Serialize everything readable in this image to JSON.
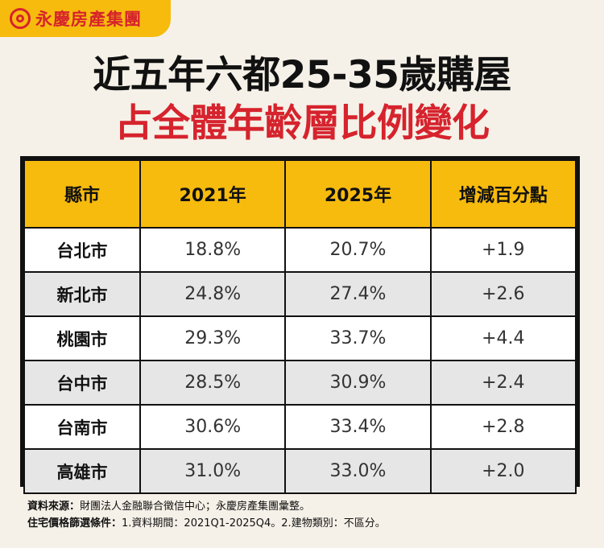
{
  "brand": {
    "name": "永慶房產集團",
    "logo_icon": "circle-logo-icon",
    "accent": "#f7bb0e",
    "brand_color": "#d6232d"
  },
  "title": {
    "line1": "近五年六都25-35歲購屋",
    "line2": "占全體年齡層比例變化"
  },
  "chart_data": {
    "type": "table",
    "columns": [
      "縣市",
      "2021年",
      "2025年",
      "增減百分點"
    ],
    "rows": [
      {
        "city": "台北市",
        "y2021": "18.8%",
        "y2025": "20.7%",
        "change": "+1.9"
      },
      {
        "city": "新北市",
        "y2021": "24.8%",
        "y2025": "27.4%",
        "change": "+2.6"
      },
      {
        "city": "桃園市",
        "y2021": "29.3%",
        "y2025": "33.7%",
        "change": "+4.4"
      },
      {
        "city": "台中市",
        "y2021": "28.5%",
        "y2025": "30.9%",
        "change": "+2.4"
      },
      {
        "city": "台南市",
        "y2021": "30.6%",
        "y2025": "33.4%",
        "change": "+2.8"
      },
      {
        "city": "高雄市",
        "y2021": "31.0%",
        "y2025": "33.0%",
        "change": "+2.0"
      }
    ]
  },
  "notes": {
    "source_label": "資料來源：",
    "source_text": "財團法人金融聯合徵信中心；永慶房產集團彙整。",
    "filter_label": "住宅價格篩選條件：",
    "filter_text": "1.資料期間：2021Q1-2025Q4。2.建物類別：不區分。"
  }
}
